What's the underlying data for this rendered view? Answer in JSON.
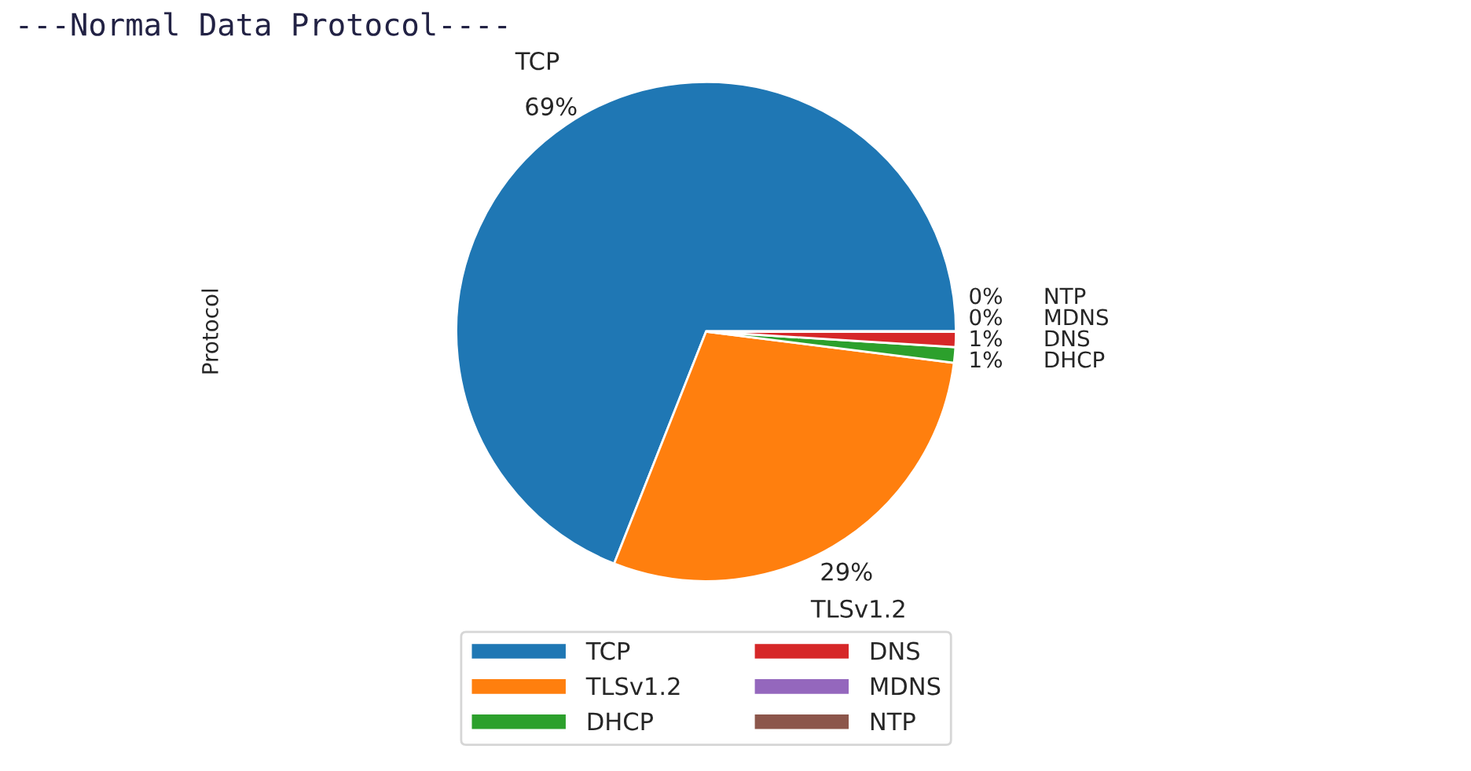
{
  "chart_data": {
    "type": "pie",
    "title": "---Normal Data Protocol----",
    "ylabel": "Protocol",
    "categories": [
      "TCP",
      "TLSv1.2",
      "DHCP",
      "DNS",
      "MDNS",
      "NTP"
    ],
    "values": [
      69,
      29,
      1,
      1,
      0,
      0
    ],
    "colors": [
      "#1f77b4",
      "#ff7f0e",
      "#2ca02c",
      "#d62728",
      "#9467bd",
      "#8c564b"
    ],
    "value_labels": [
      "69%",
      "29%",
      "1%",
      "1%",
      "0%",
      "0%"
    ],
    "legend": "bottom"
  }
}
